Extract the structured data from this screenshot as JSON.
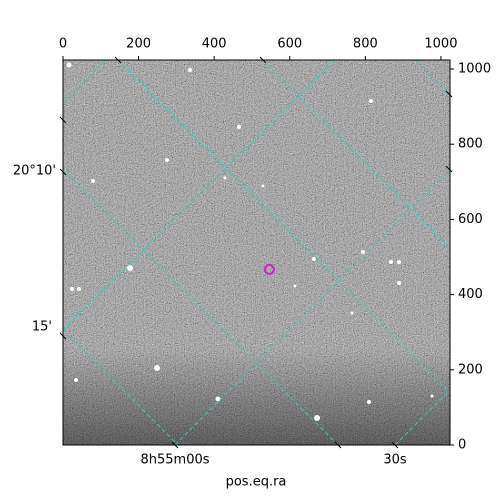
{
  "chart_data": {
    "type": "image",
    "xlabel": "pos.eq.ra",
    "xlim": [
      0,
      1024
    ],
    "ylim": [
      0,
      1024
    ],
    "xticks": [
      0,
      200,
      400,
      600,
      800,
      1000
    ],
    "yticks": [
      0,
      200,
      400,
      600,
      800,
      1000
    ],
    "dec_labels": [
      "20°10'",
      "15'"
    ],
    "ra_labels": [
      "8h55m00s",
      "30s"
    ],
    "markers": [
      {
        "x": 546,
        "y": 467
      }
    ]
  }
}
